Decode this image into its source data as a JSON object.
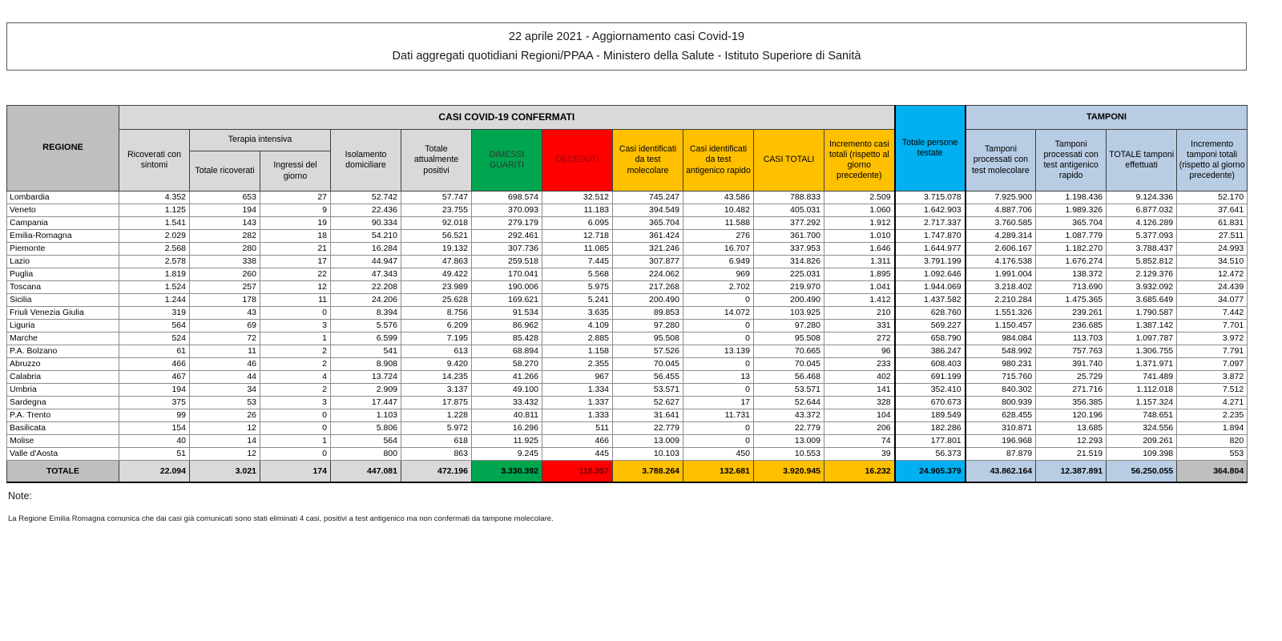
{
  "title": {
    "line1": "22 aprile 2021 - Aggiornamento casi Covid-19",
    "line2": "Dati aggregati quotidiani Regioni/PPAA - Ministero della Salute - Istituto Superiore di Sanità"
  },
  "table": {
    "header": {
      "regione": "REGIONE",
      "casi_confermati": "CASI COVID-19 CONFERMATI",
      "tamponi_band": "TAMPONI",
      "ricoverati_sintomi": "Ricoverati con sintomi",
      "terapia_intensiva": "Terapia intensiva",
      "totale_ricoverati": "Totale ricoverati",
      "ingressi_giorno": "Ingressi del giorno",
      "isolamento": "Isolamento domiciliare",
      "attualmente_positivi": "Totale attualmente positivi",
      "dimessi_guariti": "DIMESSI GUARITI",
      "deceduti": "DECEDUTI",
      "casi_molecolare": "Casi identificati da test molecolare",
      "casi_antigenico": "Casi identificati da test antigenico rapido",
      "casi_totali": "CASI TOTALI",
      "incremento_casi": "Incremento casi totali (rispetto al giorno precedente)",
      "persone_testate": "Totale persone testate",
      "tamponi_molecolare": "Tamponi processati con test molecolare",
      "tamponi_antigenico": "Tamponi processati con test antigenico rapido",
      "totale_tamponi": "TOTALE tamponi effettuati",
      "incremento_tamponi": "Incremento tamponi totali (rispetto al giorno precedente)"
    },
    "rows": [
      {
        "regione": "Lombardia",
        "values": [
          "4.352",
          "653",
          "27",
          "52.742",
          "57.747",
          "698.574",
          "32.512",
          "745.247",
          "43.586",
          "788.833",
          "2.509",
          "3.715.078",
          "7.925.900",
          "1.198.436",
          "9.124.336",
          "52.170"
        ]
      },
      {
        "regione": "Veneto",
        "values": [
          "1.125",
          "194",
          "9",
          "22.436",
          "23.755",
          "370.093",
          "11.183",
          "394.549",
          "10.482",
          "405.031",
          "1.060",
          "1.642.903",
          "4.887.706",
          "1.989.326",
          "6.877.032",
          "37.641"
        ]
      },
      {
        "regione": "Campania",
        "values": [
          "1.541",
          "143",
          "19",
          "90.334",
          "92.018",
          "279.179",
          "6.095",
          "365.704",
          "11.588",
          "377.292",
          "1.912",
          "2.717.337",
          "3.760.585",
          "365.704",
          "4.126.289",
          "61.831"
        ]
      },
      {
        "regione": "Emilia-Romagna",
        "values": [
          "2.029",
          "282",
          "18",
          "54.210",
          "56.521",
          "292.461",
          "12.718",
          "361.424",
          "276",
          "361.700",
          "1.010",
          "1.747.870",
          "4.289.314",
          "1.087.779",
          "5.377.093",
          "27.511"
        ]
      },
      {
        "regione": "Piemonte",
        "values": [
          "2.568",
          "280",
          "21",
          "16.284",
          "19.132",
          "307.736",
          "11.085",
          "321.246",
          "16.707",
          "337.953",
          "1.646",
          "1.644.977",
          "2.606.167",
          "1.182.270",
          "3.788.437",
          "24.993"
        ]
      },
      {
        "regione": "Lazio",
        "values": [
          "2.578",
          "338",
          "17",
          "44.947",
          "47.863",
          "259.518",
          "7.445",
          "307.877",
          "6.949",
          "314.826",
          "1.311",
          "3.791.199",
          "4.176.538",
          "1.676.274",
          "5.852.812",
          "34.510"
        ]
      },
      {
        "regione": "Puglia",
        "values": [
          "1.819",
          "260",
          "22",
          "47.343",
          "49.422",
          "170.041",
          "5.568",
          "224.062",
          "969",
          "225.031",
          "1.895",
          "1.092.646",
          "1.991.004",
          "138.372",
          "2.129.376",
          "12.472"
        ]
      },
      {
        "regione": "Toscana",
        "values": [
          "1.524",
          "257",
          "12",
          "22.208",
          "23.989",
          "190.006",
          "5.975",
          "217.268",
          "2.702",
          "219.970",
          "1.041",
          "1.944.069",
          "3.218.402",
          "713.690",
          "3.932.092",
          "24.439"
        ]
      },
      {
        "regione": "Sicilia",
        "values": [
          "1.244",
          "178",
          "11",
          "24.206",
          "25.628",
          "169.621",
          "5.241",
          "200.490",
          "0",
          "200.490",
          "1.412",
          "1.437.582",
          "2.210.284",
          "1.475.365",
          "3.685.649",
          "34.077"
        ]
      },
      {
        "regione": "Friuli Venezia Giulia",
        "values": [
          "319",
          "43",
          "0",
          "8.394",
          "8.756",
          "91.534",
          "3.635",
          "89.853",
          "14.072",
          "103.925",
          "210",
          "628.760",
          "1.551.326",
          "239.261",
          "1.790.587",
          "7.442"
        ]
      },
      {
        "regione": "Liguria",
        "values": [
          "564",
          "69",
          "3",
          "5.576",
          "6.209",
          "86.962",
          "4.109",
          "97.280",
          "0",
          "97.280",
          "331",
          "569.227",
          "1.150.457",
          "236.685",
          "1.387.142",
          "7.701"
        ]
      },
      {
        "regione": "Marche",
        "values": [
          "524",
          "72",
          "1",
          "6.599",
          "7.195",
          "85.428",
          "2.885",
          "95.508",
          "0",
          "95.508",
          "272",
          "658.790",
          "984.084",
          "113.703",
          "1.097.787",
          "3.972"
        ]
      },
      {
        "regione": "P.A. Bolzano",
        "values": [
          "61",
          "11",
          "2",
          "541",
          "613",
          "68.894",
          "1.158",
          "57.526",
          "13.139",
          "70.665",
          "96",
          "386.247",
          "548.992",
          "757.763",
          "1.306.755",
          "7.791"
        ]
      },
      {
        "regione": "Abruzzo",
        "values": [
          "466",
          "46",
          "2",
          "8.908",
          "9.420",
          "58.270",
          "2.355",
          "70.045",
          "0",
          "70.045",
          "233",
          "608.403",
          "980.231",
          "391.740",
          "1.371.971",
          "7.097"
        ]
      },
      {
        "regione": "Calabria",
        "values": [
          "467",
          "44",
          "4",
          "13.724",
          "14.235",
          "41.266",
          "967",
          "56.455",
          "13",
          "56.468",
          "402",
          "691.199",
          "715.760",
          "25.729",
          "741.489",
          "3.872"
        ]
      },
      {
        "regione": "Umbria",
        "values": [
          "194",
          "34",
          "2",
          "2.909",
          "3.137",
          "49.100",
          "1.334",
          "53.571",
          "0",
          "53.571",
          "141",
          "352.410",
          "840.302",
          "271.716",
          "1.112.018",
          "7.512"
        ]
      },
      {
        "regione": "Sardegna",
        "values": [
          "375",
          "53",
          "3",
          "17.447",
          "17.875",
          "33.432",
          "1.337",
          "52.627",
          "17",
          "52.644",
          "328",
          "670.673",
          "800.939",
          "356.385",
          "1.157.324",
          "4.271"
        ]
      },
      {
        "regione": "P.A. Trento",
        "values": [
          "99",
          "26",
          "0",
          "1.103",
          "1.228",
          "40.811",
          "1.333",
          "31.641",
          "11.731",
          "43.372",
          "104",
          "189.549",
          "628.455",
          "120.196",
          "748.651",
          "2.235"
        ]
      },
      {
        "regione": "Basilicata",
        "values": [
          "154",
          "12",
          "0",
          "5.806",
          "5.972",
          "16.296",
          "511",
          "22.779",
          "0",
          "22.779",
          "206",
          "182.286",
          "310.871",
          "13.685",
          "324.556",
          "1.894"
        ]
      },
      {
        "regione": "Molise",
        "values": [
          "40",
          "14",
          "1",
          "564",
          "618",
          "11.925",
          "466",
          "13.009",
          "0",
          "13.009",
          "74",
          "177.801",
          "196.968",
          "12.293",
          "209.261",
          "820"
        ]
      },
      {
        "regione": "Valle d'Aosta",
        "values": [
          "51",
          "12",
          "0",
          "800",
          "863",
          "9.245",
          "445",
          "10.103",
          "450",
          "10.553",
          "39",
          "56.373",
          "87.879",
          "21.519",
          "109.398",
          "553"
        ]
      }
    ],
    "totale": {
      "label": "TOTALE",
      "values": [
        "22.094",
        "3.021",
        "174",
        "447.081",
        "472.196",
        "3.330.392",
        "118.357",
        "3.788.264",
        "132.681",
        "3.920.945",
        "16.232",
        "24.905.379",
        "43.862.164",
        "12.387.891",
        "56.250.055",
        "364.804"
      ]
    }
  },
  "notes": {
    "label": "Note:",
    "text": "La Regione Emilia Romagna comunica che dai casi già comunicati sono stati eliminati 4 casi, positivi a test antigenico ma non confermati da tampone molecolare."
  },
  "colors": {
    "green": "#00A550",
    "red": "#FF0000",
    "gold": "#FFC000",
    "cyan": "#00B0F0",
    "light_blue": "#B8CCE4",
    "gray_dark": "#BFBFBF",
    "gray_light": "#D9D9D9"
  }
}
